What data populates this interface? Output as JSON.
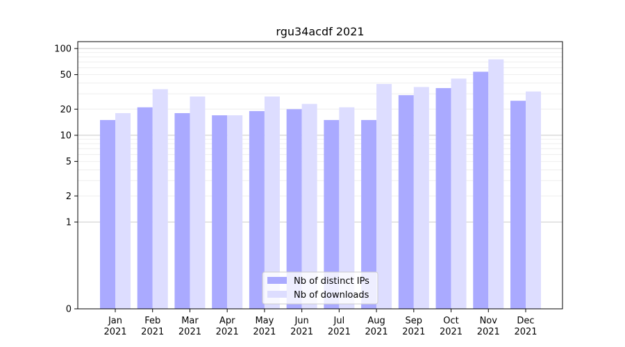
{
  "chart_data": {
    "type": "bar",
    "title": "rgu34acdf 2021",
    "xlabel": "",
    "ylabel": "",
    "yscale": "symlog",
    "ylim": [
      0,
      120
    ],
    "y_ticks": [
      0,
      1,
      2,
      5,
      10,
      20,
      50,
      100
    ],
    "y_tick_labels": [
      "0",
      "1",
      "2",
      "5",
      "10",
      "20",
      "50",
      "100"
    ],
    "grid": true,
    "legend_position": "bottom-center",
    "categories": [
      [
        "Jan",
        "2021"
      ],
      [
        "Feb",
        "2021"
      ],
      [
        "Mar",
        "2021"
      ],
      [
        "Apr",
        "2021"
      ],
      [
        "May",
        "2021"
      ],
      [
        "Jun",
        "2021"
      ],
      [
        "Jul",
        "2021"
      ],
      [
        "Aug",
        "2021"
      ],
      [
        "Sep",
        "2021"
      ],
      [
        "Oct",
        "2021"
      ],
      [
        "Nov",
        "2021"
      ],
      [
        "Dec",
        "2021"
      ]
    ],
    "series": [
      {
        "name": "Nb of distinct IPs",
        "color": "#aaaaff",
        "values": [
          15,
          21,
          18,
          17,
          19,
          20,
          15,
          15,
          29,
          35,
          54,
          25
        ]
      },
      {
        "name": "Nb of downloads",
        "color": "#ddddff",
        "values": [
          18,
          34,
          28,
          17,
          28,
          23,
          21,
          39,
          36,
          45,
          75,
          32
        ]
      }
    ]
  }
}
